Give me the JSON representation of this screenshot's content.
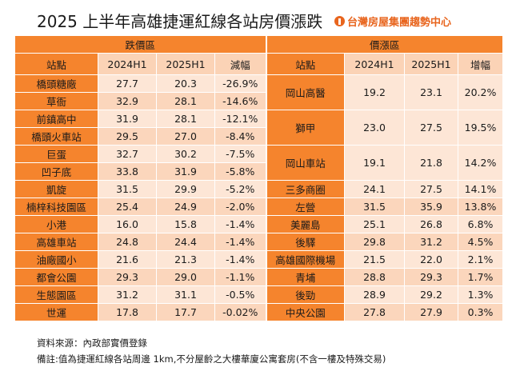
{
  "title": "2025 上半年高雄捷運紅線各站房價漲跌",
  "logo_text": "台灣房屋集團趨勢中心",
  "left": {
    "section": "跌價區",
    "headers": [
      "站點",
      "2024H1",
      "2025H1",
      "減幅"
    ],
    "rows": [
      [
        "橋頭糖廠",
        "27.7",
        "20.3",
        "-26.9%"
      ],
      [
        "草衙",
        "32.9",
        "28.1",
        "-14.6%"
      ],
      [
        "前鎮高中",
        "31.9",
        "28.1",
        "-12.1%"
      ],
      [
        "橋頭火車站",
        "29.5",
        "27.0",
        "-8.4%"
      ],
      [
        "巨蛋",
        "32.7",
        "30.2",
        "-7.5%"
      ],
      [
        "凹子底",
        "33.8",
        "31.9",
        "-5.8%"
      ],
      [
        "凱旋",
        "31.5",
        "29.9",
        "-5.2%"
      ],
      [
        "楠梓科技園區",
        "25.4",
        "24.9",
        "-2.0%"
      ],
      [
        "小港",
        "16.0",
        "15.8",
        "-1.4%"
      ],
      [
        "高雄車站",
        "24.8",
        "24.4",
        "-1.4%"
      ],
      [
        "油廠國小",
        "21.6",
        "21.3",
        "-1.4%"
      ],
      [
        "都會公園",
        "29.3",
        "29.0",
        "-1.1%"
      ],
      [
        "生態園區",
        "31.2",
        "31.1",
        "-0.5%"
      ],
      [
        "世運",
        "17.8",
        "17.7",
        "-0.02%"
      ]
    ]
  },
  "right": {
    "section": "價漲區",
    "headers": [
      "站點",
      "2024H1",
      "2025H1",
      "增幅"
    ],
    "rows": [
      [
        "岡山高醫",
        "19.2",
        "23.1",
        "20.2%"
      ],
      [
        "獅甲",
        "23.0",
        "27.5",
        "19.5%"
      ],
      [
        "岡山車站",
        "19.1",
        "21.8",
        "14.2%"
      ],
      [
        "三多商圈",
        "24.1",
        "27.5",
        "14.1%"
      ],
      [
        "左營",
        "31.5",
        "35.9",
        "13.8%"
      ],
      [
        "美麗島",
        "25.1",
        "26.8",
        "6.8%"
      ],
      [
        "後驛",
        "29.8",
        "31.2",
        "4.5%"
      ],
      [
        "高雄國際機場",
        "21.5",
        "22.0",
        "2.1%"
      ],
      [
        "青埔",
        "28.8",
        "29.3",
        "1.7%"
      ],
      [
        "後勁",
        "28.9",
        "29.2",
        "1.3%"
      ],
      [
        "中央公園",
        "27.8",
        "27.9",
        "0.3%"
      ]
    ]
  },
  "source": "資料來源：內政部實價登錄",
  "note": "備註:值為捷運紅線各站周邊 1km,不分屋齡之大樓華廈公寓套房(不含一樓及特殊交易)"
}
